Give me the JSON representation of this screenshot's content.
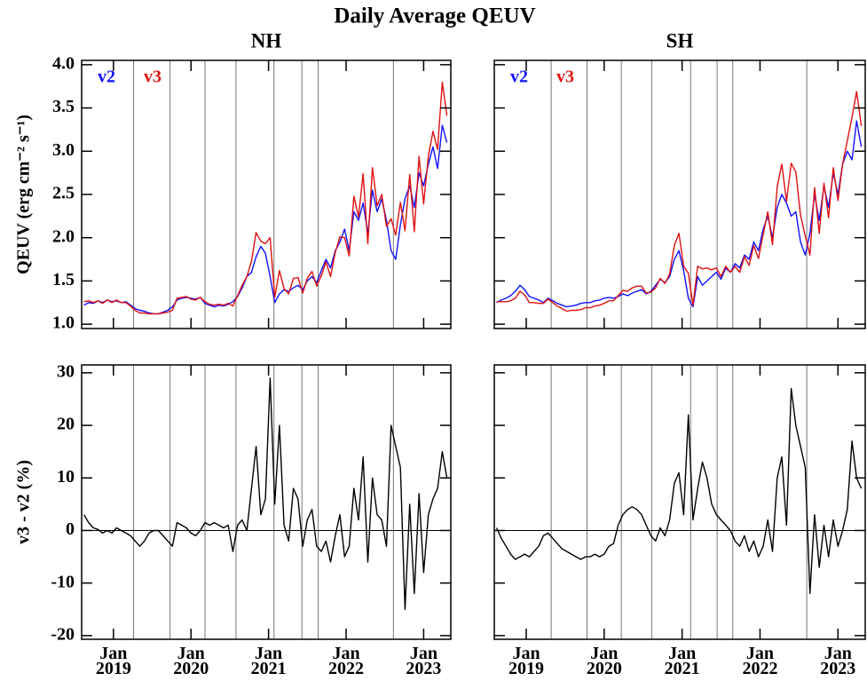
{
  "title": "Daily Average QEUV",
  "chart_data": [
    {
      "type": "line",
      "title": "NH",
      "ylabel": "QEUV (erg cm⁻² s⁻¹)",
      "x": [
        2018.62,
        2018.68,
        2018.74,
        2018.8,
        2018.86,
        2018.92,
        2018.98,
        2019.04,
        2019.1,
        2019.16,
        2019.22,
        2019.28,
        2019.34,
        2019.4,
        2019.46,
        2019.52,
        2019.58,
        2019.64,
        2019.7,
        2019.76,
        2019.82,
        2019.88,
        2019.94,
        2020.0,
        2020.06,
        2020.12,
        2020.18,
        2020.24,
        2020.3,
        2020.36,
        2020.42,
        2020.48,
        2020.54,
        2020.6,
        2020.66,
        2020.72,
        2020.78,
        2020.84,
        2020.9,
        2020.96,
        2021.02,
        2021.08,
        2021.14,
        2021.2,
        2021.26,
        2021.32,
        2021.38,
        2021.44,
        2021.5,
        2021.56,
        2021.62,
        2021.68,
        2021.74,
        2021.8,
        2021.86,
        2021.92,
        2021.98,
        2022.04,
        2022.1,
        2022.16,
        2022.22,
        2022.28,
        2022.34,
        2022.4,
        2022.46,
        2022.52,
        2022.58,
        2022.64,
        2022.7,
        2022.76,
        2022.82,
        2022.88,
        2022.94,
        2023.0,
        2023.06,
        2023.12,
        2023.18,
        2023.24,
        2023.3
      ],
      "series": [
        {
          "name": "v2",
          "color": "#1010ff",
          "values": [
            1.22,
            1.25,
            1.24,
            1.27,
            1.25,
            1.28,
            1.26,
            1.27,
            1.25,
            1.26,
            1.22,
            1.18,
            1.16,
            1.15,
            1.13,
            1.12,
            1.12,
            1.14,
            1.16,
            1.2,
            1.28,
            1.3,
            1.31,
            1.3,
            1.29,
            1.31,
            1.24,
            1.22,
            1.2,
            1.22,
            1.21,
            1.23,
            1.26,
            1.32,
            1.42,
            1.55,
            1.6,
            1.78,
            1.9,
            1.82,
            1.55,
            1.25,
            1.35,
            1.4,
            1.38,
            1.42,
            1.45,
            1.4,
            1.5,
            1.55,
            1.48,
            1.62,
            1.75,
            1.65,
            1.85,
            1.95,
            2.1,
            1.85,
            2.3,
            2.2,
            2.4,
            2.05,
            2.55,
            2.3,
            2.45,
            2.2,
            1.85,
            1.75,
            2.15,
            2.45,
            2.6,
            2.35,
            2.75,
            2.6,
            2.85,
            3.05,
            2.8,
            3.3,
            3.1
          ]
        },
        {
          "name": "v3",
          "color": "#e01010",
          "values": [
            1.26,
            1.27,
            1.25,
            1.27,
            1.24,
            1.28,
            1.25,
            1.28,
            1.25,
            1.25,
            1.21,
            1.16,
            1.13,
            1.13,
            1.12,
            1.12,
            1.12,
            1.13,
            1.14,
            1.16,
            1.3,
            1.31,
            1.32,
            1.29,
            1.28,
            1.31,
            1.26,
            1.23,
            1.22,
            1.23,
            1.22,
            1.24,
            1.21,
            1.33,
            1.45,
            1.55,
            1.73,
            2.06,
            1.96,
            1.93,
            2.0,
            1.31,
            1.62,
            1.41,
            1.35,
            1.53,
            1.54,
            1.36,
            1.53,
            1.61,
            1.44,
            1.56,
            1.72,
            1.55,
            1.83,
            2.01,
            2.0,
            1.79,
            2.48,
            2.24,
            2.74,
            1.93,
            2.81,
            2.37,
            2.5,
            2.13,
            2.22,
            2.03,
            2.41,
            2.08,
            2.73,
            2.07,
            2.94,
            2.39,
            2.94,
            3.23,
            3.02,
            3.8,
            3.41
          ]
        }
      ],
      "xlim": [
        2018.59,
        2023.35
      ],
      "ylim": [
        0.95,
        4.05
      ],
      "yticks": [
        {
          "value": 1,
          "label": "1.0"
        },
        1.5,
        {
          "value": 2,
          "label": "2.0"
        },
        2.5,
        {
          "value": 3,
          "label": "3.0"
        },
        3.5,
        {
          "value": 4,
          "label": "4.0"
        }
      ],
      "event_lines": [
        2019.26,
        2019.73,
        2020.18,
        2020.58,
        2021.07,
        2021.43,
        2021.64,
        2022.61
      ]
    },
    {
      "type": "line",
      "title": "SH",
      "x": [
        2018.62,
        2018.68,
        2018.74,
        2018.8,
        2018.86,
        2018.92,
        2018.98,
        2019.04,
        2019.1,
        2019.16,
        2019.22,
        2019.28,
        2019.34,
        2019.4,
        2019.46,
        2019.52,
        2019.58,
        2019.64,
        2019.7,
        2019.76,
        2019.82,
        2019.88,
        2019.94,
        2020.0,
        2020.06,
        2020.12,
        2020.18,
        2020.24,
        2020.3,
        2020.36,
        2020.42,
        2020.48,
        2020.54,
        2020.6,
        2020.66,
        2020.72,
        2020.78,
        2020.84,
        2020.9,
        2020.96,
        2021.02,
        2021.08,
        2021.14,
        2021.2,
        2021.26,
        2021.32,
        2021.38,
        2021.44,
        2021.5,
        2021.56,
        2021.62,
        2021.68,
        2021.74,
        2021.8,
        2021.86,
        2021.92,
        2021.98,
        2022.04,
        2022.1,
        2022.16,
        2022.22,
        2022.28,
        2022.34,
        2022.4,
        2022.46,
        2022.52,
        2022.58,
        2022.64,
        2022.7,
        2022.76,
        2022.82,
        2022.88,
        2022.94,
        2023.0,
        2023.06,
        2023.12,
        2023.18,
        2023.24,
        2023.3
      ],
      "series": [
        {
          "name": "v2",
          "color": "#1010ff",
          "values": [
            1.25,
            1.28,
            1.3,
            1.33,
            1.38,
            1.45,
            1.4,
            1.32,
            1.3,
            1.28,
            1.25,
            1.3,
            1.27,
            1.24,
            1.22,
            1.2,
            1.21,
            1.22,
            1.24,
            1.25,
            1.25,
            1.27,
            1.28,
            1.3,
            1.31,
            1.3,
            1.32,
            1.35,
            1.33,
            1.36,
            1.38,
            1.4,
            1.35,
            1.38,
            1.45,
            1.52,
            1.48,
            1.55,
            1.75,
            1.85,
            1.62,
            1.3,
            1.2,
            1.55,
            1.45,
            1.5,
            1.55,
            1.6,
            1.52,
            1.65,
            1.6,
            1.7,
            1.65,
            1.8,
            1.75,
            1.95,
            1.85,
            2.1,
            2.25,
            2.0,
            2.35,
            2.5,
            2.4,
            2.25,
            2.3,
            1.95,
            1.8,
            2.05,
            2.5,
            2.2,
            2.6,
            2.35,
            2.75,
            2.5,
            2.85,
            3.0,
            2.9,
            3.35,
            3.05
          ]
        },
        {
          "name": "v3",
          "color": "#e01010",
          "values": [
            1.26,
            1.26,
            1.26,
            1.27,
            1.3,
            1.38,
            1.34,
            1.25,
            1.25,
            1.24,
            1.24,
            1.29,
            1.25,
            1.21,
            1.18,
            1.15,
            1.16,
            1.16,
            1.17,
            1.19,
            1.19,
            1.21,
            1.22,
            1.24,
            1.27,
            1.27,
            1.33,
            1.39,
            1.38,
            1.42,
            1.44,
            1.44,
            1.36,
            1.37,
            1.42,
            1.53,
            1.47,
            1.58,
            1.91,
            2.05,
            1.67,
            1.59,
            1.22,
            1.67,
            1.64,
            1.65,
            1.63,
            1.65,
            1.55,
            1.67,
            1.6,
            1.67,
            1.6,
            1.78,
            1.68,
            1.91,
            1.76,
            2.04,
            2.3,
            1.92,
            2.59,
            2.85,
            2.42,
            2.86,
            2.76,
            2.26,
            2.02,
            1.8,
            2.58,
            2.05,
            2.63,
            2.23,
            2.81,
            2.43,
            2.85,
            3.12,
            3.39,
            3.69,
            3.29
          ]
        }
      ],
      "xlim": [
        2018.59,
        2023.35
      ],
      "ylim": [
        0.95,
        4.05
      ],
      "event_lines": [
        2019.32,
        2019.78,
        2020.22,
        2020.61,
        2021.11,
        2021.45,
        2021.65,
        2022.6
      ]
    },
    {
      "type": "line",
      "ylabel": "v3 - v2 (%)",
      "x": [
        2018.62,
        2018.68,
        2018.74,
        2018.8,
        2018.86,
        2018.92,
        2018.98,
        2019.04,
        2019.1,
        2019.16,
        2019.22,
        2019.28,
        2019.34,
        2019.4,
        2019.46,
        2019.52,
        2019.58,
        2019.64,
        2019.7,
        2019.76,
        2019.82,
        2019.88,
        2019.94,
        2020.0,
        2020.06,
        2020.12,
        2020.18,
        2020.24,
        2020.3,
        2020.36,
        2020.42,
        2020.48,
        2020.54,
        2020.6,
        2020.66,
        2020.72,
        2020.78,
        2020.84,
        2020.9,
        2020.96,
        2021.02,
        2021.08,
        2021.14,
        2021.2,
        2021.26,
        2021.32,
        2021.38,
        2021.44,
        2021.5,
        2021.56,
        2021.62,
        2021.68,
        2021.74,
        2021.8,
        2021.86,
        2021.92,
        2021.98,
        2022.04,
        2022.1,
        2022.16,
        2022.22,
        2022.28,
        2022.34,
        2022.4,
        2022.46,
        2022.52,
        2022.58,
        2022.64,
        2022.7,
        2022.76,
        2022.82,
        2022.88,
        2022.94,
        2023.0,
        2023.06,
        2023.12,
        2023.18,
        2023.24,
        2023.3
      ],
      "values": [
        3,
        1.5,
        0.5,
        0.2,
        -0.5,
        0,
        -0.5,
        0.5,
        0,
        -0.5,
        -1,
        -2,
        -3,
        -2,
        -0.5,
        0,
        0,
        -1,
        -2,
        -3,
        1.5,
        1,
        0.5,
        -0.5,
        -1,
        0,
        1.5,
        1,
        1.5,
        1,
        0.5,
        1,
        -4,
        1,
        2,
        0,
        8,
        16,
        3,
        6,
        29,
        5,
        20,
        1,
        -2,
        8,
        6,
        -3,
        2,
        4,
        -3,
        -4,
        -2,
        -6,
        -1,
        3,
        -5,
        -3,
        8,
        2,
        14,
        -6,
        10,
        3,
        2,
        -3,
        20,
        16,
        12,
        -15,
        5,
        -12,
        7,
        -8,
        3,
        6,
        8,
        15,
        10
      ],
      "color": "#000000",
      "xlim": [
        2018.59,
        2023.35
      ],
      "ylim": [
        -20.7,
        31.5
      ],
      "yticks": [
        -20,
        -10,
        0,
        10,
        20,
        30
      ],
      "xticks": [
        {
          "value": 2019,
          "label": "Jan\n2019"
        },
        {
          "value": 2020,
          "label": "Jan\n2020"
        },
        {
          "value": 2021,
          "label": "Jan\n2021"
        },
        {
          "value": 2022,
          "label": "Jan\n2022"
        },
        {
          "value": 2023,
          "label": "Jan\n2023"
        }
      ],
      "hline": 0
    },
    {
      "type": "line",
      "x": [
        2018.62,
        2018.68,
        2018.74,
        2018.8,
        2018.86,
        2018.92,
        2018.98,
        2019.04,
        2019.1,
        2019.16,
        2019.22,
        2019.28,
        2019.34,
        2019.4,
        2019.46,
        2019.52,
        2019.58,
        2019.64,
        2019.7,
        2019.76,
        2019.82,
        2019.88,
        2019.94,
        2020.0,
        2020.06,
        2020.12,
        2020.18,
        2020.24,
        2020.3,
        2020.36,
        2020.42,
        2020.48,
        2020.54,
        2020.6,
        2020.66,
        2020.72,
        2020.78,
        2020.84,
        2020.9,
        2020.96,
        2021.02,
        2021.08,
        2021.14,
        2021.2,
        2021.26,
        2021.32,
        2021.38,
        2021.44,
        2021.5,
        2021.56,
        2021.62,
        2021.68,
        2021.74,
        2021.8,
        2021.86,
        2021.92,
        2021.98,
        2022.04,
        2022.1,
        2022.16,
        2022.22,
        2022.28,
        2022.34,
        2022.4,
        2022.46,
        2022.52,
        2022.58,
        2022.64,
        2022.7,
        2022.76,
        2022.82,
        2022.88,
        2022.94,
        2023.0,
        2023.06,
        2023.12,
        2023.18,
        2023.24,
        2023.3
      ],
      "values": [
        0.5,
        -1.5,
        -3,
        -4.5,
        -5.5,
        -5,
        -4.5,
        -5,
        -4,
        -3,
        -1,
        -0.5,
        -1.5,
        -2.5,
        -3.5,
        -4,
        -4.5,
        -5,
        -5.5,
        -5,
        -5,
        -4.5,
        -5,
        -4.5,
        -3,
        -2.5,
        1,
        3,
        4,
        4.5,
        4,
        3,
        1,
        -1,
        -2,
        0.5,
        -1,
        2,
        9,
        11,
        3,
        22,
        2,
        8,
        13,
        10,
        5,
        3,
        2,
        1,
        0,
        -2,
        -3,
        -1,
        -4,
        -2,
        -5,
        -3,
        2,
        -4,
        10,
        14,
        1,
        27,
        20,
        16,
        12,
        -12,
        3,
        -7,
        1,
        -5,
        2,
        -3,
        0,
        4,
        17,
        10,
        8
      ],
      "color": "#000000",
      "xlim": [
        2018.59,
        2023.35
      ],
      "ylim": [
        -20.7,
        31.5
      ],
      "xticks": [
        {
          "value": 2019,
          "label": "Jan\n2019"
        },
        {
          "value": 2020,
          "label": "Jan\n2020"
        },
        {
          "value": 2021,
          "label": "Jan\n2021"
        },
        {
          "value": 2022,
          "label": "Jan\n2022"
        },
        {
          "value": 2023,
          "label": "Jan\n2023"
        }
      ],
      "hline": 0
    }
  ]
}
